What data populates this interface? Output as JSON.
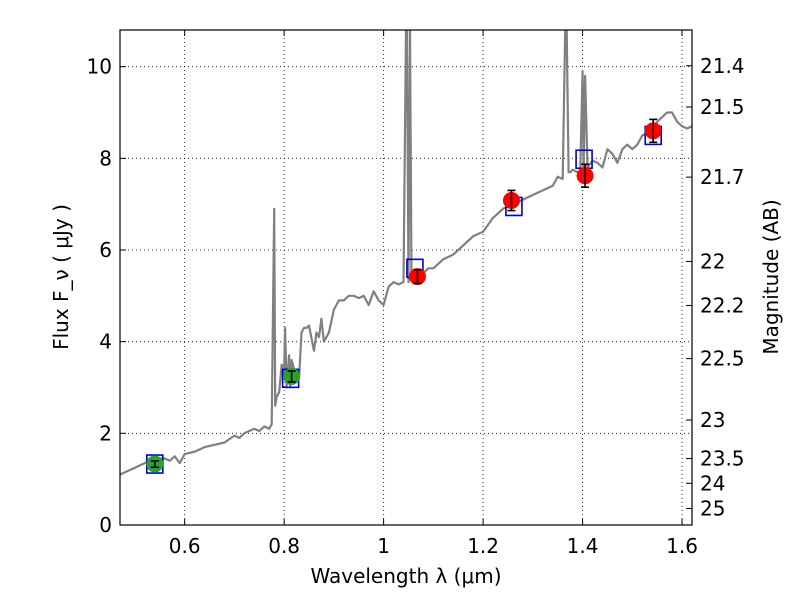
{
  "chart_data": {
    "type": "line",
    "xlabel": "Wavelength  λ (μm)",
    "ylabel": "Flux  F_ν  ( μJy )",
    "ylabel_right": "Magnitude (AB)",
    "xlim": [
      0.47,
      1.62
    ],
    "ylim": [
      0,
      10.8
    ],
    "grid": true,
    "x_ticks": [
      0.6,
      0.8,
      1.0,
      1.2,
      1.4,
      1.6
    ],
    "x_tick_labels": [
      "0.6",
      "0.8",
      "1",
      "1.2",
      "1.4",
      "1.6"
    ],
    "y_ticks": [
      0,
      2,
      4,
      6,
      8,
      10
    ],
    "y_tick_labels": [
      "0",
      "2",
      "4",
      "6",
      "8",
      "10"
    ],
    "right_ticks": [
      {
        "flux": 10.02,
        "label": "21.4"
      },
      {
        "flux": 9.12,
        "label": "21.5"
      },
      {
        "flux": 7.59,
        "label": "21.7"
      },
      {
        "flux": 5.75,
        "label": "22"
      },
      {
        "flux": 4.79,
        "label": "22.2"
      },
      {
        "flux": 3.63,
        "label": "22.5"
      },
      {
        "flux": 2.29,
        "label": "23"
      },
      {
        "flux": 1.45,
        "label": "23.5"
      },
      {
        "flux": 0.91,
        "label": "24"
      },
      {
        "flux": 0.36,
        "label": "25"
      }
    ],
    "series": [
      {
        "color": "#808080",
        "x": [
          0.47,
          0.48,
          0.49,
          0.5,
          0.51,
          0.52,
          0.53,
          0.54,
          0.55,
          0.56,
          0.57,
          0.58,
          0.59,
          0.6,
          0.62,
          0.64,
          0.66,
          0.68,
          0.7,
          0.71,
          0.72,
          0.73,
          0.74,
          0.75,
          0.76,
          0.77,
          0.775,
          0.78,
          0.782,
          0.785,
          0.79,
          0.795,
          0.8,
          0.802,
          0.805,
          0.81,
          0.812,
          0.815,
          0.82,
          0.825,
          0.83,
          0.835,
          0.84,
          0.845,
          0.85,
          0.86,
          0.865,
          0.87,
          0.875,
          0.88,
          0.89,
          0.9,
          0.91,
          0.92,
          0.93,
          0.94,
          0.95,
          0.96,
          0.97,
          0.98,
          0.99,
          1.0,
          1.01,
          1.02,
          1.03,
          1.04,
          1.045,
          1.047,
          1.05,
          1.053,
          1.056,
          1.06,
          1.07,
          1.08,
          1.09,
          1.1,
          1.12,
          1.14,
          1.16,
          1.18,
          1.2,
          1.22,
          1.24,
          1.26,
          1.28,
          1.3,
          1.32,
          1.34,
          1.35,
          1.36,
          1.365,
          1.368,
          1.372,
          1.376,
          1.38,
          1.39,
          1.395,
          1.4,
          1.402,
          1.405,
          1.41,
          1.42,
          1.43,
          1.44,
          1.45,
          1.46,
          1.47,
          1.48,
          1.49,
          1.5,
          1.51,
          1.52,
          1.53,
          1.54,
          1.55,
          1.56,
          1.57,
          1.58,
          1.59,
          1.6,
          1.61,
          1.62
        ],
        "y": [
          1.1,
          1.15,
          1.2,
          1.25,
          1.3,
          1.35,
          1.4,
          1.4,
          1.45,
          1.45,
          1.4,
          1.5,
          1.35,
          1.55,
          1.6,
          1.7,
          1.75,
          1.8,
          1.95,
          1.9,
          2.0,
          2.05,
          2.1,
          2.05,
          2.15,
          2.1,
          2.2,
          6.9,
          2.6,
          2.8,
          2.9,
          3.5,
          3.3,
          4.3,
          3.0,
          3.7,
          3.0,
          3.6,
          3.4,
          3.3,
          3.2,
          4.2,
          4.3,
          4.3,
          4.35,
          3.8,
          4.2,
          4.1,
          4.5,
          4.0,
          4.2,
          4.7,
          4.9,
          4.9,
          5.0,
          5.0,
          4.95,
          5.0,
          4.8,
          5.1,
          4.9,
          4.8,
          5.2,
          5.3,
          5.25,
          5.3,
          10.8,
          10.8,
          5.3,
          10.8,
          5.4,
          5.35,
          5.4,
          5.5,
          5.6,
          5.6,
          5.8,
          5.9,
          6.1,
          6.3,
          6.4,
          6.7,
          6.9,
          7.0,
          7.1,
          7.2,
          7.3,
          7.4,
          7.6,
          7.55,
          10.8,
          10.8,
          7.7,
          7.7,
          7.75,
          7.7,
          7.6,
          9.9,
          7.8,
          9.8,
          7.8,
          7.95,
          7.9,
          7.8,
          8.2,
          8.1,
          7.9,
          8.2,
          8.3,
          8.2,
          8.3,
          8.5,
          8.55,
          8.6,
          8.8,
          8.9,
          9.0,
          9.0,
          8.8,
          8.7,
          8.65,
          8.7
        ]
      }
    ],
    "photometry": [
      {
        "x": 0.54,
        "y": 1.33,
        "err": 0.07,
        "color": "#2ca02c"
      },
      {
        "x": 0.815,
        "y": 3.24,
        "err": 0.12,
        "color": "#2ca02c"
      },
      {
        "x": 1.068,
        "y": 5.42,
        "err": 0.15,
        "color": "#ff0000"
      },
      {
        "x": 1.257,
        "y": 7.08,
        "err": 0.22,
        "color": "#ff0000"
      },
      {
        "x": 1.405,
        "y": 7.62,
        "err": 0.25,
        "color": "#ff0000"
      },
      {
        "x": 1.542,
        "y": 8.6,
        "err": 0.25,
        "color": "#ff0000"
      }
    ],
    "model_boxes": [
      {
        "x": 0.54,
        "y": 1.33
      },
      {
        "x": 0.813,
        "y": 3.2
      },
      {
        "x": 1.063,
        "y": 5.6
      },
      {
        "x": 1.262,
        "y": 6.95
      },
      {
        "x": 1.403,
        "y": 7.98
      },
      {
        "x": 1.542,
        "y": 8.5
      }
    ],
    "box_color": "#0000cc",
    "marker_edge": "#000000"
  }
}
